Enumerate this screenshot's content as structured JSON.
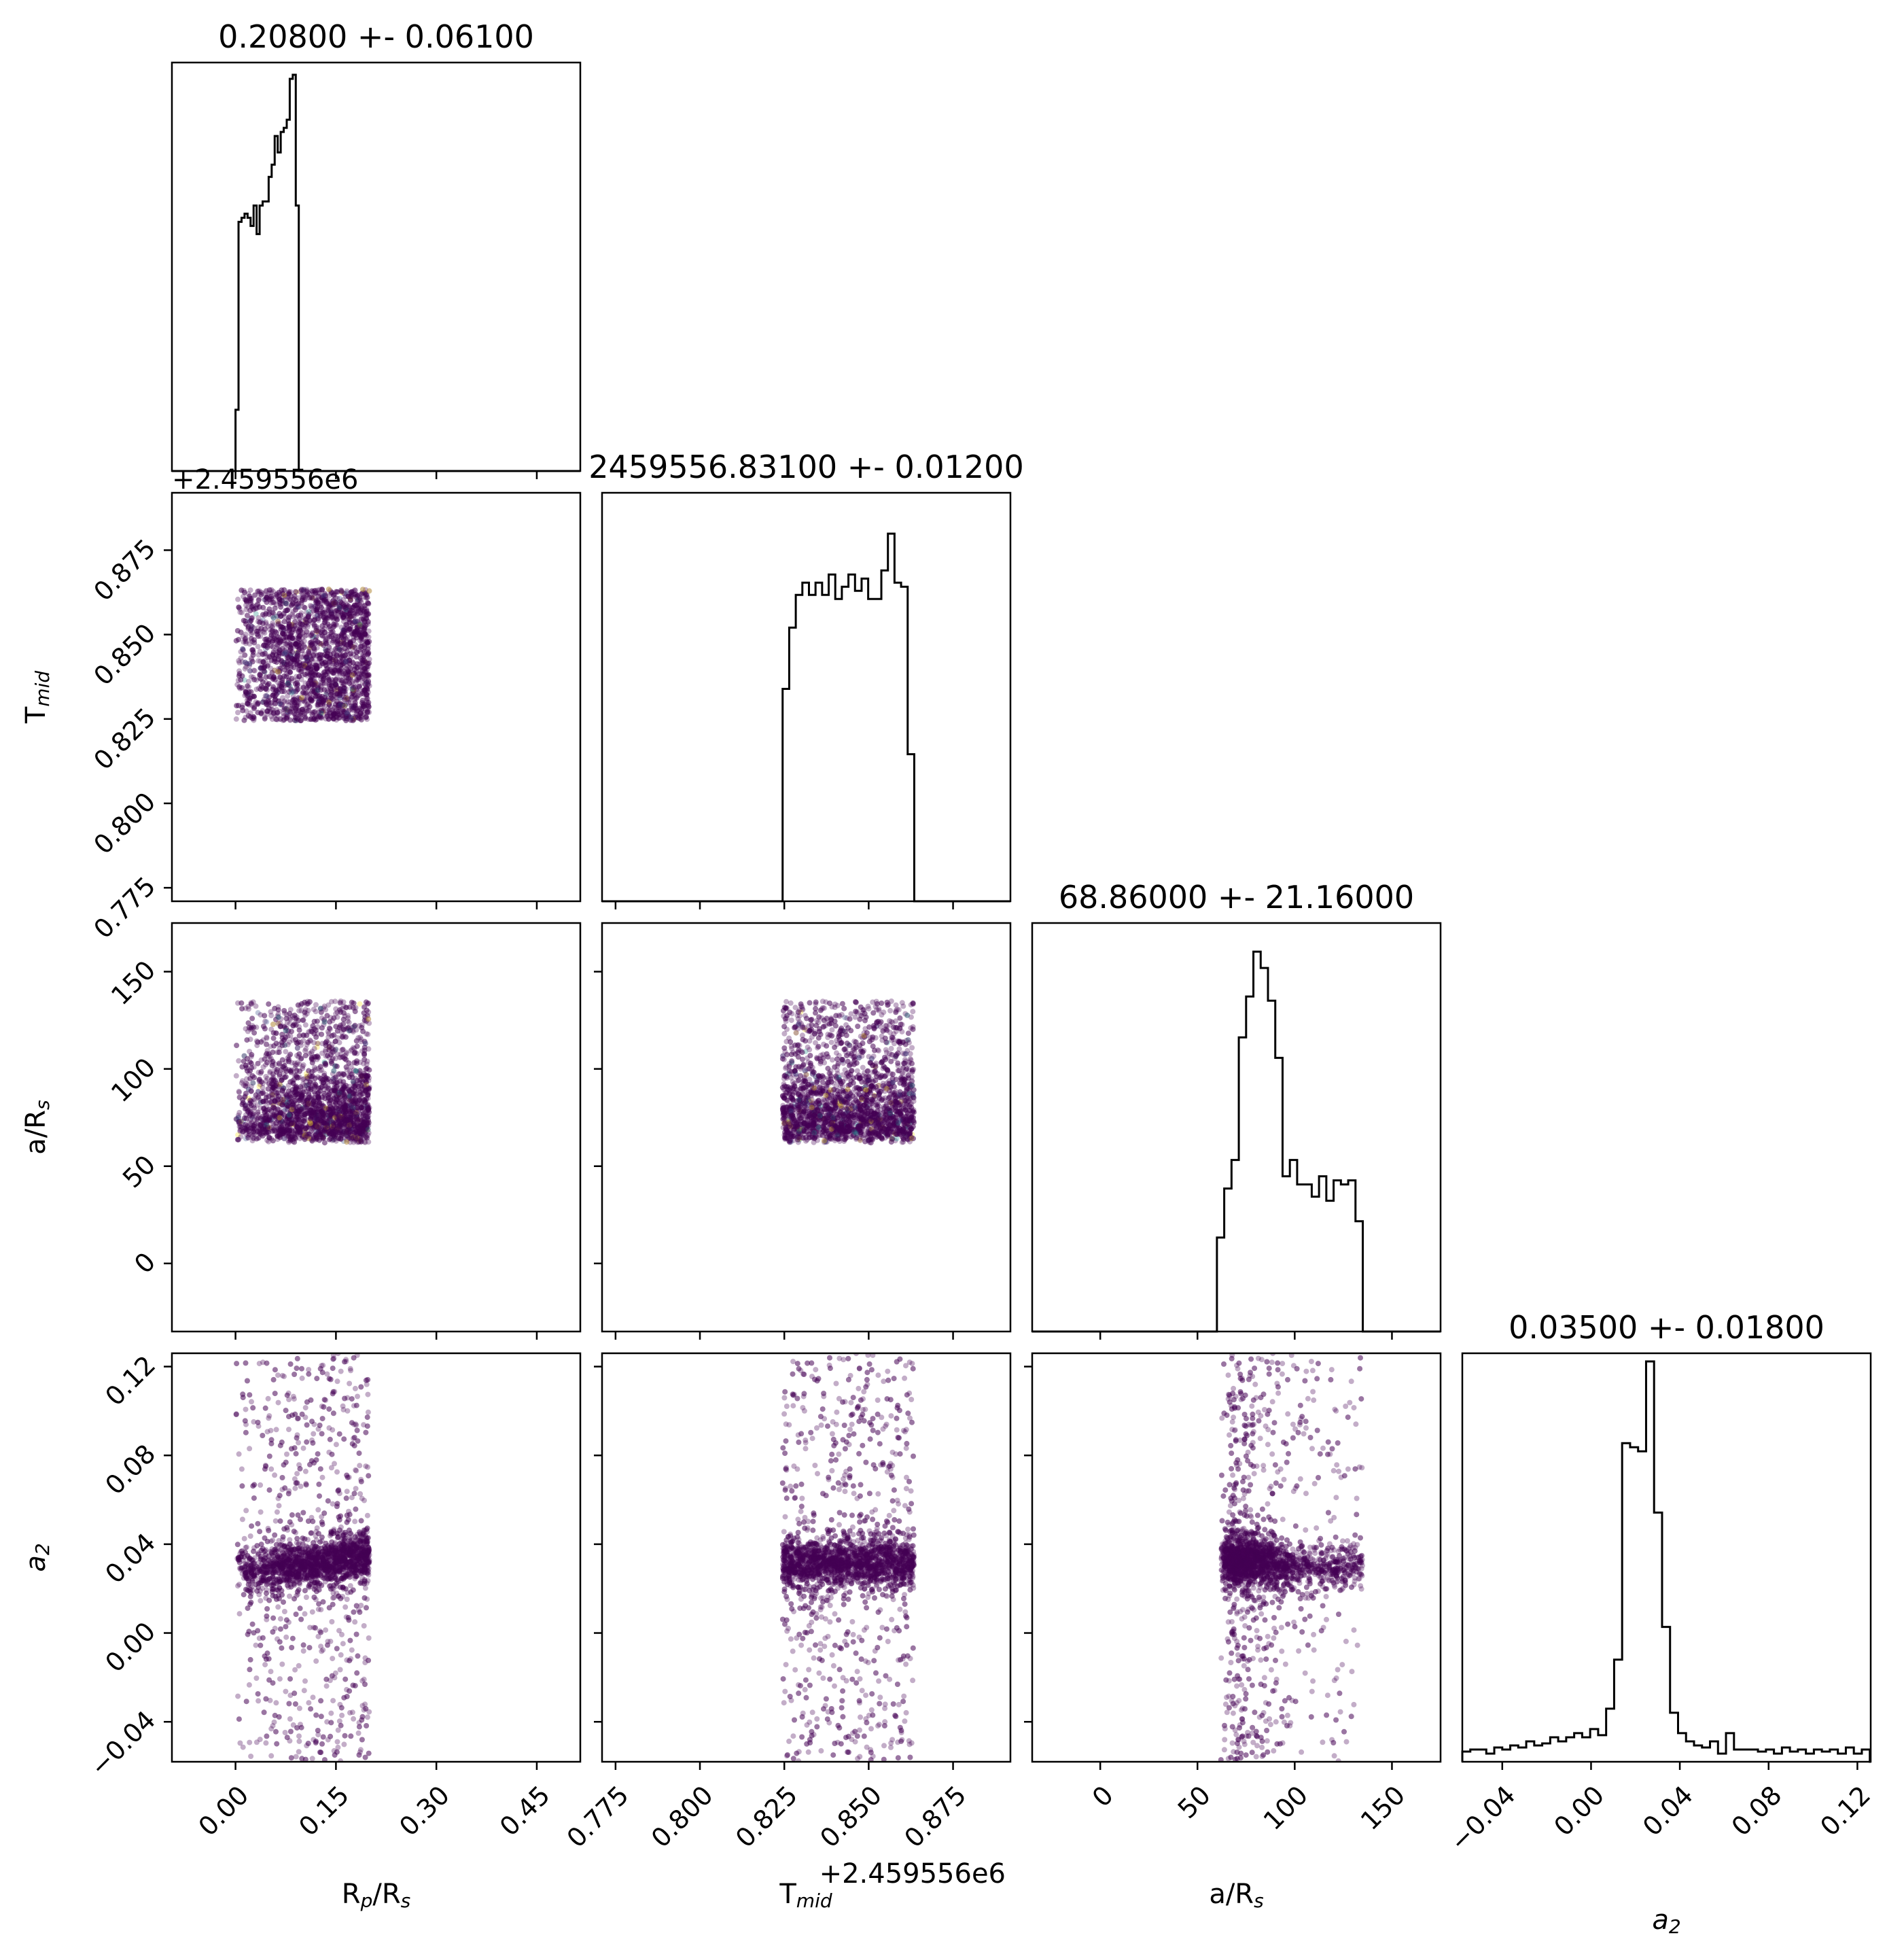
{
  "chart_data": {
    "type": "corner",
    "parameters": [
      {
        "key": "rp",
        "label": "R",
        "sub": "p",
        "tail": "/R",
        "sub2": "s",
        "range": [
          -0.095,
          0.515
        ],
        "ticks": [
          "0.00",
          "0.15",
          "0.30",
          "0.45"
        ],
        "tick_values": [
          0.0,
          0.15,
          0.3,
          0.45
        ]
      },
      {
        "key": "tmid",
        "label": "T",
        "sub": "mid",
        "tail": "",
        "sub2": "",
        "range": [
          0.771,
          0.892
        ],
        "ticks": [
          "0.775",
          "0.800",
          "0.825",
          "0.850",
          "0.875"
        ],
        "tick_values": [
          0.775,
          0.8,
          0.825,
          0.85,
          0.875
        ],
        "offset_text": "+2.459556e6"
      },
      {
        "key": "ars",
        "label": "a/R",
        "sub": "s",
        "tail": "",
        "sub2": "",
        "range": [
          -35,
          175
        ],
        "ticks": [
          "0",
          "50",
          "100",
          "150"
        ],
        "tick_values": [
          0,
          50,
          100,
          150
        ]
      },
      {
        "key": "a2",
        "label": "a",
        "sub": "2",
        "tail": "",
        "sub2": "",
        "label_italic": true,
        "range": [
          -0.058,
          0.126
        ],
        "ticks": [
          "−0.04",
          "0.00",
          "0.04",
          "0.08",
          "0.12"
        ],
        "tick_values": [
          -0.04,
          0.0,
          0.04,
          0.08,
          0.12
        ]
      }
    ],
    "titles": [
      "0.20800 +- 0.06100",
      "2459556.83100 +- 0.01200",
      "68.86000 +- 21.16000",
      "0.03500 +- 0.01800"
    ],
    "histograms": [
      {
        "edges_start": 0.0,
        "bin_width": 0.0045,
        "counts": [
          0.15,
          0.61,
          0.62,
          0.63,
          0.62,
          0.6,
          0.65,
          0.58,
          0.65,
          0.66,
          0.66,
          0.72,
          0.75,
          0.82,
          0.78,
          0.83,
          0.84,
          0.86,
          0.96,
          0.97,
          0.65
        ]
      },
      {
        "edges_start": 0.8245,
        "bin_width": 0.00195,
        "counts": [
          0.52,
          0.67,
          0.75,
          0.78,
          0.75,
          0.78,
          0.75,
          0.8,
          0.74,
          0.77,
          0.8,
          0.76,
          0.79,
          0.74,
          0.74,
          0.81,
          0.9,
          0.78,
          0.77,
          0.36
        ]
      },
      {
        "edges_start": 60,
        "bin_width": 3.75,
        "counts": [
          0.23,
          0.35,
          0.42,
          0.72,
          0.82,
          0.93,
          0.89,
          0.81,
          0.67,
          0.38,
          0.42,
          0.36,
          0.36,
          0.33,
          0.38,
          0.32,
          0.37,
          0.36,
          0.37,
          0.27
        ]
      },
      {
        "edges_start": -0.058,
        "bin_width": 0.0036,
        "counts": [
          0.025,
          0.03,
          0.03,
          0.02,
          0.035,
          0.03,
          0.04,
          0.035,
          0.05,
          0.04,
          0.045,
          0.06,
          0.05,
          0.06,
          0.07,
          0.06,
          0.08,
          0.065,
          0.13,
          0.25,
          0.78,
          0.77,
          0.76,
          0.98,
          0.61,
          0.33,
          0.12,
          0.07,
          0.05,
          0.04,
          0.035,
          0.05,
          0.02,
          0.07,
          0.03,
          0.03,
          0.03,
          0.025,
          0.03,
          0.02,
          0.035,
          0.025,
          0.03,
          0.02,
          0.03,
          0.025,
          0.03,
          0.02,
          0.035,
          0.02,
          0.03
        ]
      }
    ],
    "sample_boxes": {
      "rp": [
        0.0,
        0.2
      ],
      "tmid": [
        0.8245,
        0.8635
      ],
      "ars": [
        62,
        135
      ],
      "a2_core": [
        0.022,
        0.045
      ]
    },
    "scatter_color": "#440154",
    "scatter_highlight_colors": [
      "#3b528b",
      "#21918c",
      "#fde725"
    ],
    "line_color": "#000000"
  }
}
